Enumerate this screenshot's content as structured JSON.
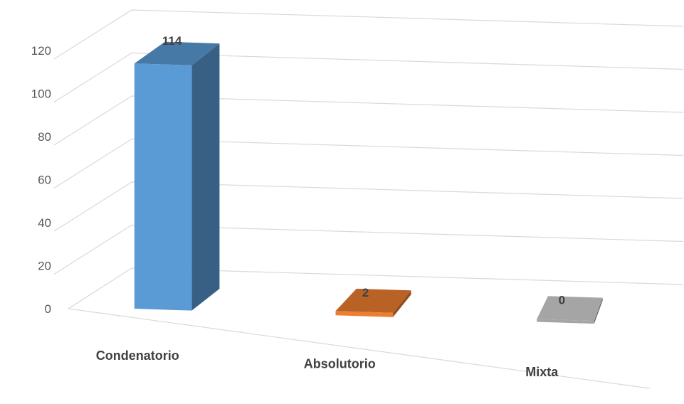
{
  "chart_data": {
    "type": "bar",
    "style": "3d-column",
    "categories": [
      "Condenatorio",
      "Absolutorio",
      "Mixta"
    ],
    "values": [
      114,
      2,
      0
    ],
    "data_labels": [
      "114",
      "2",
      "0"
    ],
    "colors": [
      "#5b9bd5",
      "#ed7d31",
      "#a5a5a5"
    ],
    "ylim": [
      0,
      120
    ],
    "yticks": [
      0,
      20,
      40,
      60,
      80,
      100,
      120
    ],
    "ytick_labels": [
      "0",
      "20",
      "40",
      "60",
      "80",
      "100",
      "120"
    ],
    "grid": true,
    "legend": "none",
    "title": "",
    "xlabel": "",
    "ylabel": ""
  }
}
